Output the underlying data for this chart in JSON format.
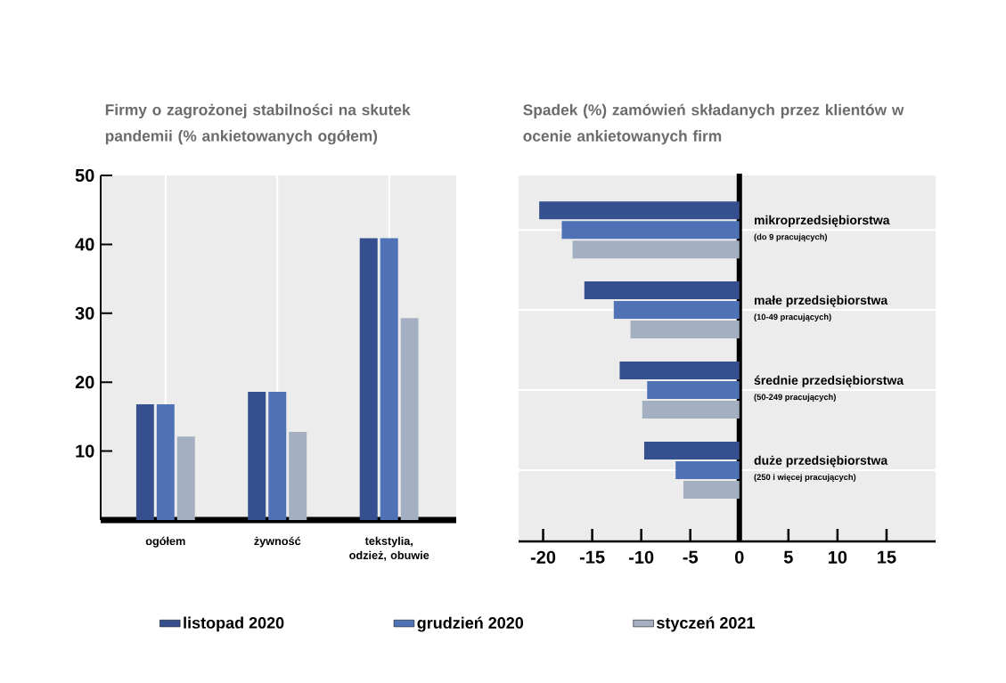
{
  "chart_data": [
    {
      "type": "bar",
      "title": "Firmy o zagrożonej stabilności na skutek pandemii (% ankietowanych ogółem)",
      "categories": [
        "ogółem",
        "żywność",
        "tekstylia, odzież, obuwie"
      ],
      "series": [
        {
          "name": "listopad 2020",
          "color": "#36508f",
          "values": [
            16.8,
            18.6,
            40.9
          ]
        },
        {
          "name": "grudzień 2020",
          "color": "#4e72b5",
          "values": [
            16.8,
            18.6,
            40.9
          ]
        },
        {
          "name": "styczeń 2021",
          "color": "#a5afc2",
          "values": [
            12.1,
            12.8,
            29.3
          ]
        }
      ],
      "ylim": [
        0,
        50
      ],
      "yticks": [
        10,
        20,
        30,
        40,
        50
      ],
      "grid": "x",
      "legend": "bottom"
    },
    {
      "type": "bar",
      "orientation": "horizontal",
      "title": "Spadek (%) zamówień składanych przez klientów w ocenie ankietowanych firm",
      "categories": [
        "mikroprzedsiębiorstwa",
        "małe przedsiębiorstwa",
        "średnie przedsiębiorstwa",
        "duże przedsiębiorstwa"
      ],
      "annotations": [
        "(do 9 pracujących)",
        "(10-49 pracujących)",
        "(50-249 pracujących)",
        "(250 i więcej pracujących)"
      ],
      "series": [
        {
          "color": "#36508f",
          "values": [
            -20.4,
            -15.8,
            -12.2,
            -9.7
          ]
        },
        {
          "color": "#4e72b5",
          "values": [
            -18.1,
            -12.8,
            -9.4,
            -6.5
          ]
        },
        {
          "color": "#a5afc2",
          "values": [
            -17.0,
            -11.1,
            -9.9,
            -5.7
          ]
        }
      ],
      "xlim": [
        -22.5,
        20
      ],
      "xticks": [
        -20,
        -15,
        -10,
        -5,
        0,
        5,
        10,
        15
      ],
      "grid": "y"
    }
  ]
}
